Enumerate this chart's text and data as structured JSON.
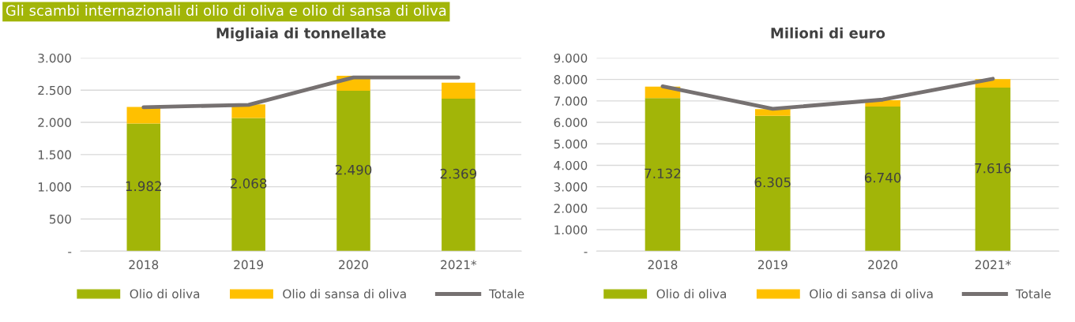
{
  "chart_data": [
    {
      "type": "bar",
      "stacked": true,
      "title": "Migliaia di tonnellate",
      "annotations": [
        "Gli scambi internazionali di olio di oliva e olio di sansa di oliva"
      ],
      "categories": [
        "2018",
        "2019",
        "2020",
        "2021*"
      ],
      "series": [
        {
          "name": "Olio di oliva",
          "color": "#a2b508",
          "values": [
            1982,
            2068,
            2490,
            2369
          ],
          "value_labels": [
            "1.982",
            "2.068",
            "2.490",
            "2.369"
          ]
        },
        {
          "name": "Olio di sansa di oliva",
          "color": "#ffc000",
          "values": [
            258,
            211,
            234,
            248
          ]
        },
        {
          "name": "Totale",
          "type": "line",
          "color": "#767171",
          "values": [
            2235,
            2272,
            2697,
            2697
          ]
        }
      ],
      "ylim": [
        0,
        3000
      ],
      "yticks": [
        {
          "value": 0,
          "label": "-"
        },
        500,
        {
          "value": 1000,
          "label": "1.000"
        },
        {
          "value": 1500,
          "label": "1.500"
        },
        {
          "value": 2000,
          "label": "2.000"
        },
        {
          "value": 2500,
          "label": "2.500"
        },
        {
          "value": 3000,
          "label": "3.000"
        }
      ],
      "grid": "y",
      "legend": "bottom",
      "marker": "none"
    },
    {
      "type": "bar",
      "stacked": true,
      "title": "Milioni di euro",
      "categories": [
        "2018",
        "2019",
        "2020",
        "2021*"
      ],
      "series": [
        {
          "name": "Olio di oliva",
          "color": "#a2b508",
          "values": [
            7132,
            6305,
            6740,
            7616
          ],
          "value_labels": [
            "7.132",
            "6.305",
            "6.740",
            "7.616"
          ]
        },
        {
          "name": "Olio di sansa di oliva",
          "color": "#ffc000",
          "values": [
            532,
            309,
            288,
            398
          ]
        },
        {
          "name": "Totale",
          "type": "line",
          "color": "#767171",
          "values": [
            7680,
            6630,
            7060,
            8030
          ]
        }
      ],
      "ylim": [
        0,
        9000
      ],
      "yticks": [
        {
          "value": 0,
          "label": "-"
        },
        {
          "value": 1000,
          "label": "1.000"
        },
        {
          "value": 2000,
          "label": "2.000"
        },
        {
          "value": 3000,
          "label": "3.000"
        },
        {
          "value": 4000,
          "label": "4.000"
        },
        {
          "value": 5000,
          "label": "5.000"
        },
        {
          "value": 6000,
          "label": "6.000"
        },
        {
          "value": 7000,
          "label": "7.000"
        },
        {
          "value": 8000,
          "label": "8.000"
        },
        {
          "value": 9000,
          "label": "9.000"
        }
      ],
      "grid": "y",
      "legend": "bottom",
      "marker": "none"
    }
  ]
}
